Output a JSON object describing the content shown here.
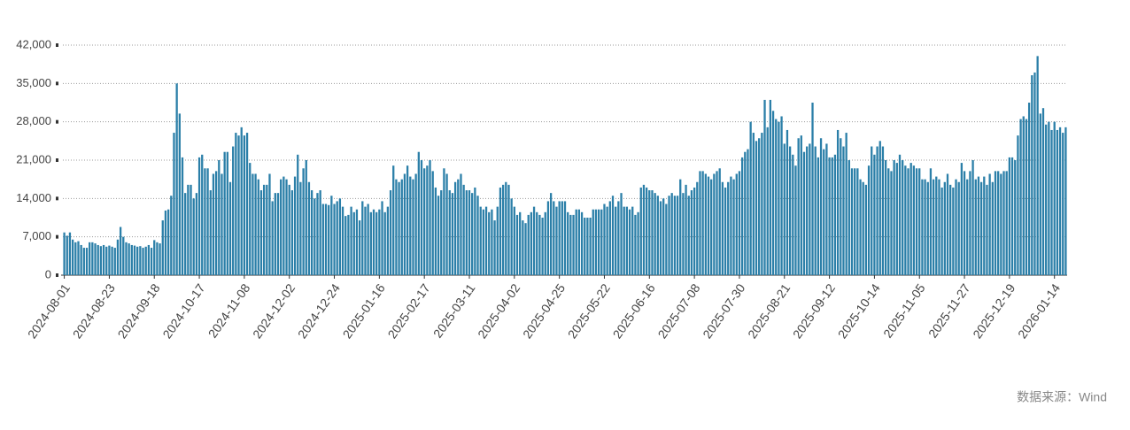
{
  "chart_data": {
    "type": "bar",
    "color": "#2b7fa8",
    "grid": true,
    "source": "数据来源：Wind",
    "ylim": [
      0,
      42000
    ],
    "yticks": [
      0,
      {
        "value": 7000,
        "label": "7,000"
      },
      {
        "value": 14000,
        "label": "14,000"
      },
      {
        "value": 21000,
        "label": "21,000"
      },
      {
        "value": 28000,
        "label": "28,000"
      },
      {
        "value": 35000,
        "label": "35,000"
      },
      {
        "value": 42000,
        "label": "42,000"
      }
    ],
    "categories": [
      "2024-08-01",
      null,
      null,
      null,
      null,
      null,
      null,
      null,
      null,
      null,
      null,
      null,
      null,
      null,
      null,
      null,
      "2024-08-23",
      null,
      null,
      null,
      null,
      null,
      null,
      null,
      null,
      null,
      null,
      null,
      null,
      null,
      null,
      null,
      "2024-09-18",
      null,
      null,
      null,
      null,
      null,
      null,
      null,
      null,
      null,
      null,
      null,
      null,
      null,
      null,
      null,
      "2024-10-17",
      null,
      null,
      null,
      null,
      null,
      null,
      null,
      null,
      null,
      null,
      null,
      null,
      null,
      null,
      null,
      "2024-11-08",
      null,
      null,
      null,
      null,
      null,
      null,
      null,
      null,
      null,
      null,
      null,
      null,
      null,
      null,
      null,
      "2024-12-02",
      null,
      null,
      null,
      null,
      null,
      null,
      null,
      null,
      null,
      null,
      null,
      null,
      null,
      null,
      null,
      "2024-12-24",
      null,
      null,
      null,
      null,
      null,
      null,
      null,
      null,
      null,
      null,
      null,
      null,
      null,
      null,
      null,
      "2025-01-16",
      null,
      null,
      null,
      null,
      null,
      null,
      null,
      null,
      null,
      null,
      null,
      null,
      null,
      null,
      null,
      "2025-02-17",
      null,
      null,
      null,
      null,
      null,
      null,
      null,
      null,
      null,
      null,
      null,
      null,
      null,
      null,
      null,
      "2025-03-11",
      null,
      null,
      null,
      null,
      null,
      null,
      null,
      null,
      null,
      null,
      null,
      null,
      null,
      null,
      null,
      "2025-04-02",
      null,
      null,
      null,
      null,
      null,
      null,
      null,
      null,
      null,
      null,
      null,
      null,
      null,
      null,
      null,
      "2025-04-25",
      null,
      null,
      null,
      null,
      null,
      null,
      null,
      null,
      null,
      null,
      null,
      null,
      null,
      null,
      null,
      "2025-05-22",
      null,
      null,
      null,
      null,
      null,
      null,
      null,
      null,
      null,
      null,
      null,
      null,
      null,
      null,
      null,
      "2025-06-16",
      null,
      null,
      null,
      null,
      null,
      null,
      null,
      null,
      null,
      null,
      null,
      null,
      null,
      null,
      null,
      "2025-07-08",
      null,
      null,
      null,
      null,
      null,
      null,
      null,
      null,
      null,
      null,
      null,
      null,
      null,
      null,
      null,
      "2025-07-30",
      null,
      null,
      null,
      null,
      null,
      null,
      null,
      null,
      null,
      null,
      null,
      null,
      null,
      null,
      null,
      "2025-08-21",
      null,
      null,
      null,
      null,
      null,
      null,
      null,
      null,
      null,
      null,
      null,
      null,
      null,
      null,
      null,
      "2025-09-12",
      null,
      null,
      null,
      null,
      null,
      null,
      null,
      null,
      null,
      null,
      null,
      null,
      null,
      null,
      null,
      "2025-10-14",
      null,
      null,
      null,
      null,
      null,
      null,
      null,
      null,
      null,
      null,
      null,
      null,
      null,
      null,
      null,
      "2025-11-05",
      null,
      null,
      null,
      null,
      null,
      null,
      null,
      null,
      null,
      null,
      null,
      null,
      null,
      null,
      null,
      "2025-11-27",
      null,
      null,
      null,
      null,
      null,
      null,
      null,
      null,
      null,
      null,
      null,
      null,
      null,
      null,
      null,
      "2025-12-19",
      null,
      null,
      null,
      null,
      null,
      null,
      null,
      null,
      null,
      null,
      null,
      null,
      null,
      null,
      null,
      "2026-01-14",
      null,
      null,
      null,
      null
    ],
    "values": [
      7800,
      7200,
      7800,
      6500,
      6000,
      6200,
      5500,
      5000,
      5000,
      6000,
      6000,
      5800,
      5500,
      5300,
      5500,
      5200,
      5400,
      5200,
      5000,
      6500,
      8800,
      7000,
      6000,
      5800,
      5500,
      5400,
      5200,
      5300,
      5000,
      5200,
      5500,
      5000,
      6400,
      6000,
      5800,
      10000,
      11800,
      12000,
      14500,
      26000,
      35000,
      29500,
      21500,
      15000,
      16500,
      16500,
      14000,
      15000,
      21500,
      22000,
      19500,
      19500,
      15500,
      18500,
      19000,
      21000,
      18500,
      22500,
      22500,
      17000,
      23500,
      26000,
      25500,
      27000,
      25500,
      26000,
      20500,
      18500,
      18500,
      17500,
      15500,
      16500,
      16500,
      18500,
      13500,
      15000,
      15000,
      17500,
      18000,
      17500,
      16500,
      15500,
      18000,
      22000,
      17000,
      19500,
      21000,
      17000,
      15500,
      14000,
      15000,
      15500,
      13000,
      13000,
      12800,
      14500,
      13000,
      13500,
      14000,
      12500,
      10800,
      11000,
      12500,
      11500,
      12000,
      10000,
      13500,
      12500,
      13000,
      11500,
      12000,
      11500,
      12000,
      13500,
      11500,
      12500,
      15500,
      20000,
      17500,
      17000,
      17500,
      18500,
      20000,
      18000,
      17500,
      18500,
      22500,
      21000,
      19500,
      20000,
      21000,
      19000,
      16000,
      14500,
      15500,
      19500,
      18500,
      15500,
      15000,
      17000,
      17500,
      18500,
      16500,
      15500,
      15500,
      15000,
      16000,
      14500,
      12500,
      12000,
      12500,
      11500,
      12000,
      10000,
      12500,
      16000,
      16500,
      17000,
      16500,
      14000,
      12500,
      11000,
      11500,
      10000,
      9500,
      11000,
      11500,
      12500,
      11500,
      11000,
      10500,
      11500,
      13500,
      15000,
      13500,
      12500,
      13500,
      13500,
      13500,
      11500,
      11000,
      11000,
      12000,
      12000,
      11500,
      10500,
      10500,
      10500,
      12000,
      12000,
      12000,
      12000,
      13000,
      12500,
      13500,
      14500,
      12500,
      13500,
      15000,
      12500,
      12500,
      12000,
      12500,
      11000,
      11500,
      16000,
      16500,
      16000,
      15500,
      15500,
      15000,
      14500,
      13500,
      14000,
      13000,
      14500,
      15000,
      14500,
      14500,
      17500,
      15000,
      16500,
      14500,
      15500,
      16000,
      17000,
      19000,
      19000,
      18500,
      18000,
      17500,
      18500,
      19000,
      19500,
      17000,
      16000,
      17000,
      18000,
      17500,
      18500,
      19000,
      21500,
      22500,
      23000,
      28000,
      26000,
      24500,
      25000,
      26000,
      32000,
      27000,
      32000,
      30000,
      28500,
      28000,
      29000,
      24000,
      26500,
      23500,
      22000,
      20000,
      25000,
      25500,
      22500,
      23500,
      24000,
      31500,
      23500,
      21500,
      25000,
      23000,
      24000,
      21500,
      21500,
      22000,
      26500,
      25000,
      23500,
      26000,
      21000,
      19500,
      19500,
      19500,
      17500,
      17000,
      16500,
      20000,
      23500,
      22000,
      23500,
      24500,
      23500,
      21000,
      19500,
      19000,
      21000,
      20500,
      22000,
      21000,
      20000,
      19500,
      20500,
      20000,
      19500,
      19500,
      17500,
      17500,
      17000,
      19500,
      17500,
      18000,
      17500,
      16000,
      17000,
      18500,
      16500,
      16000,
      17500,
      17000,
      20500,
      19000,
      17500,
      19000,
      21000,
      17500,
      18000,
      17000,
      18000,
      16500,
      18500,
      17000,
      19000,
      19000,
      18500,
      19000,
      19000,
      21500,
      21500,
      21000,
      25500,
      28500,
      29000,
      28500,
      31500,
      36500,
      37000,
      40000,
      29500,
      30500,
      27500,
      28000,
      26500,
      28000,
      26500,
      27000,
      26000,
      27000
    ]
  }
}
